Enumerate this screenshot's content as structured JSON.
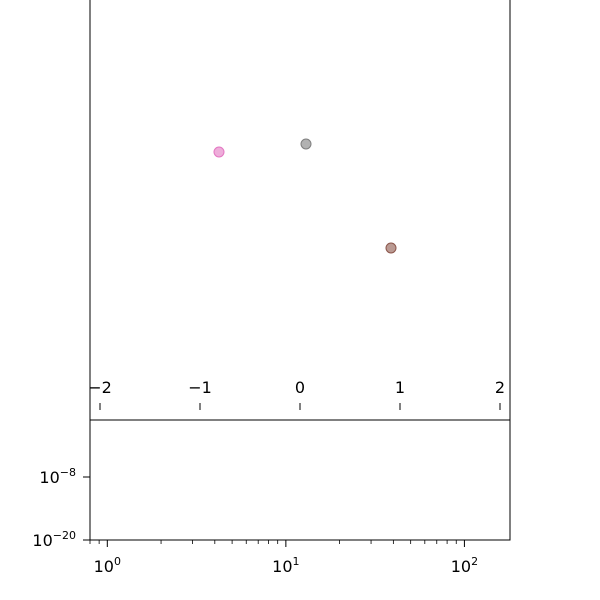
{
  "chart_data": [
    {
      "type": "scatter",
      "title": "",
      "xlabel": "",
      "ylabel": "",
      "xlim": [
        -2,
        2
      ],
      "x_ticks": [
        {
          "value": -2,
          "label": "−2"
        },
        {
          "value": -1,
          "label": "−1"
        },
        {
          "value": 0,
          "label": "0"
        },
        {
          "value": 1,
          "label": "1"
        },
        {
          "value": 2,
          "label": "2"
        }
      ],
      "x_axis_position": "inside",
      "y_ticks": [],
      "grid": false,
      "points": [
        {
          "x": -0.81,
          "y": 0.62,
          "color": "#e377c2"
        },
        {
          "x": 0.06,
          "y": 0.64,
          "color": "#7f7f7f"
        },
        {
          "x": 0.91,
          "y": 0.38,
          "color": "#8c564b"
        }
      ]
    },
    {
      "type": "scatter",
      "title": "",
      "xlabel": "",
      "ylabel": "",
      "xscale": "log",
      "yscale": "log",
      "xlim": [
        0.8,
        180
      ],
      "x_ticks": [
        {
          "value": 1,
          "base": "10",
          "exp": "0"
        },
        {
          "value": 10,
          "base": "10",
          "exp": "1"
        },
        {
          "value": 100,
          "base": "10",
          "exp": "2"
        }
      ],
      "y_ticks": [
        {
          "value": 1e-08,
          "base": "10",
          "exp": "−8"
        },
        {
          "value": 1e-20,
          "base": "10",
          "exp": "−20"
        }
      ],
      "grid": false,
      "points": []
    }
  ]
}
